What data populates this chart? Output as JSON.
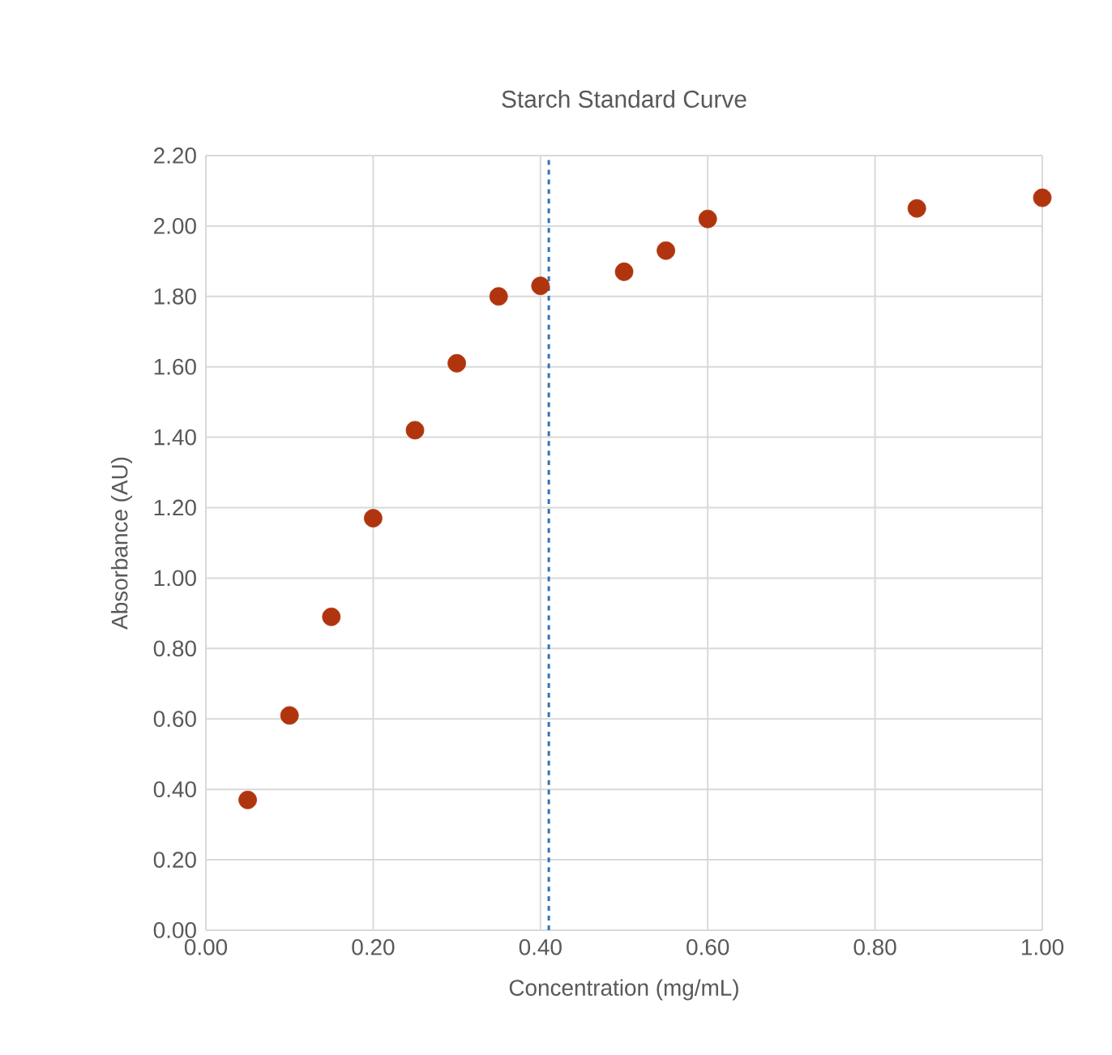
{
  "chart_data": {
    "type": "scatter",
    "title": "Starch Standard Curve",
    "xlabel": "Concentration (mg/mL)",
    "ylabel": "Absorbance (AU)",
    "x": [
      0.05,
      0.1,
      0.15,
      0.2,
      0.25,
      0.3,
      0.35,
      0.4,
      0.5,
      0.55,
      0.6,
      0.85,
      1.0
    ],
    "values": [
      0.37,
      0.61,
      0.89,
      1.17,
      1.42,
      1.61,
      1.8,
      1.83,
      1.87,
      1.93,
      2.02,
      2.05,
      2.08
    ],
    "color": "#b0350f",
    "marker": "circle",
    "grid": true,
    "xlim": [
      0,
      1
    ],
    "ylim": [
      0,
      2.2
    ],
    "xticks": [
      {
        "value": 0,
        "label": "0.00"
      },
      {
        "value": 0.2,
        "label": "0.20"
      },
      {
        "value": 0.4,
        "label": "0.40"
      },
      {
        "value": 0.6,
        "label": "0.60"
      },
      {
        "value": 0.8,
        "label": "0.80"
      },
      {
        "value": 1,
        "label": "1.00"
      }
    ],
    "yticks": [
      {
        "value": 0,
        "label": "0.00"
      },
      {
        "value": 0.2,
        "label": "0.20"
      },
      {
        "value": 0.4,
        "label": "0.40"
      },
      {
        "value": 0.6,
        "label": "0.60"
      },
      {
        "value": 0.8,
        "label": "0.80"
      },
      {
        "value": 1,
        "label": "1.00"
      },
      {
        "value": 1.2,
        "label": "1.20"
      },
      {
        "value": 1.4,
        "label": "1.40"
      },
      {
        "value": 1.6,
        "label": "1.60"
      },
      {
        "value": 1.8,
        "label": "1.80"
      },
      {
        "value": 2,
        "label": "2.00"
      },
      {
        "value": 2.2,
        "label": "2.20"
      }
    ],
    "ref_lines": [
      {
        "axis": "x",
        "value": 0.41,
        "color": "#2e75b6",
        "line_style": "dashed"
      }
    ]
  }
}
